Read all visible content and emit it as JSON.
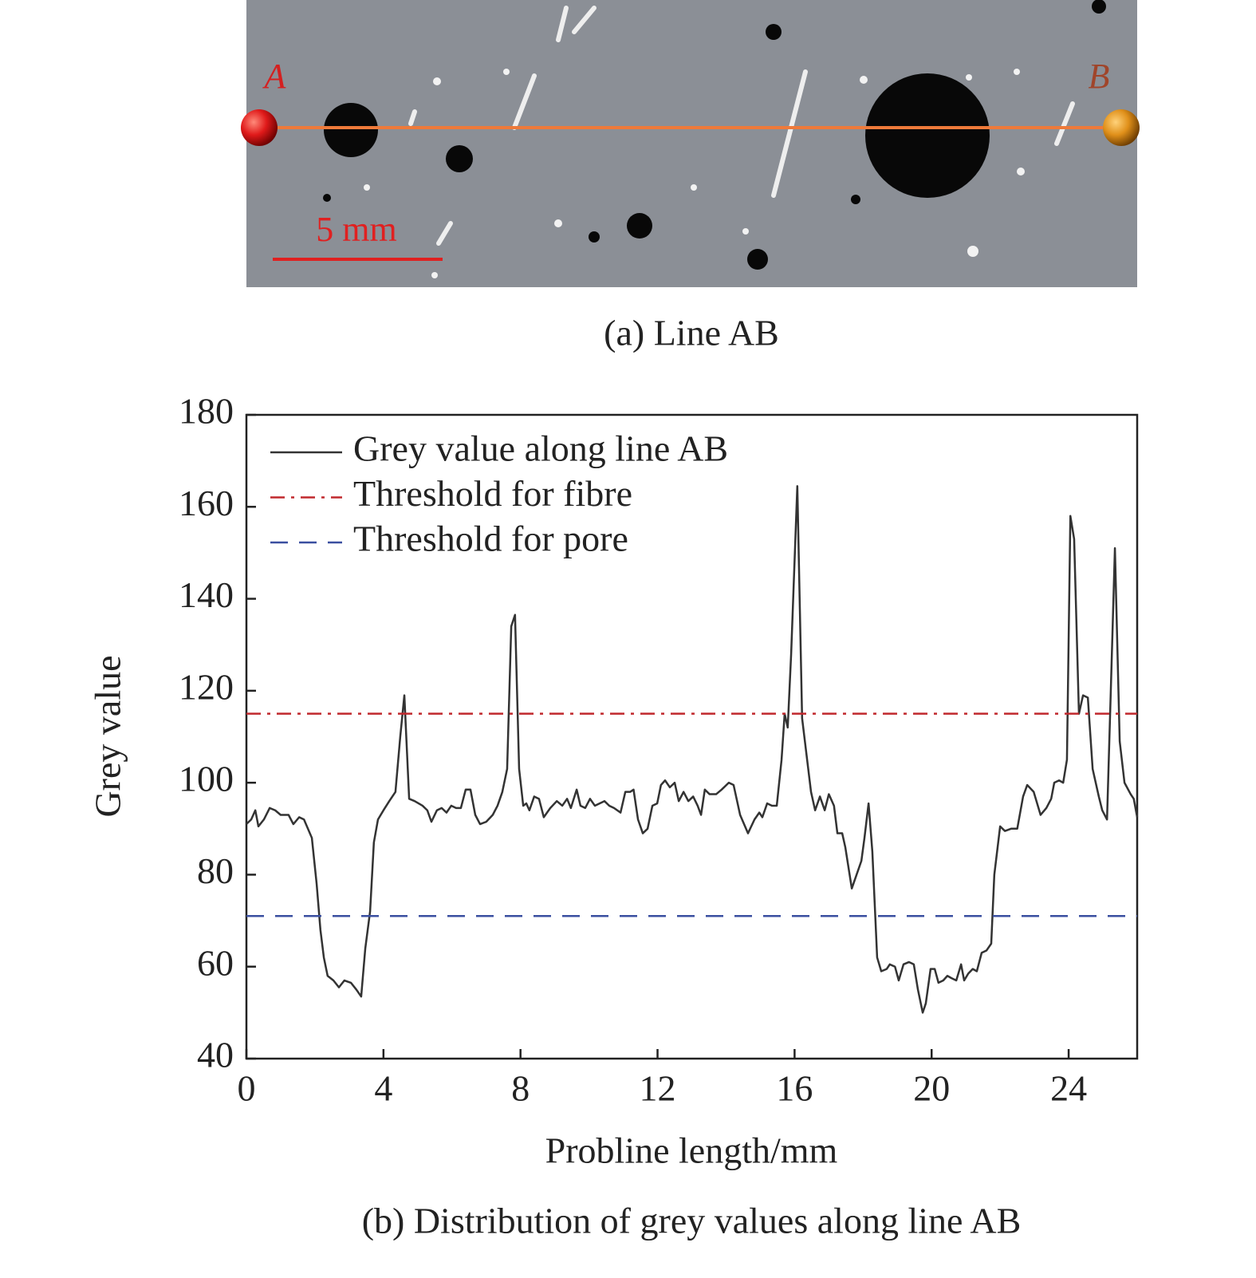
{
  "image_panel": {
    "point_a": "A",
    "point_b": "B",
    "scale_bar": "5 mm",
    "caption": "(a) Line AB"
  },
  "chart_data": {
    "type": "line",
    "x_label": "Probline length/mm",
    "y_label": "Grey value",
    "caption": "(b) Distribution of grey values along line AB",
    "xlim": [
      0,
      26
    ],
    "xticks": [
      0,
      4,
      8,
      12,
      16,
      20,
      24
    ],
    "ylim": [
      40,
      180
    ],
    "yticks": [
      40,
      60,
      80,
      100,
      120,
      140,
      160,
      180
    ],
    "legend": "upper left",
    "series": [
      {
        "name": "Grey value along line AB",
        "color": "#333333",
        "linestyle": "solid",
        "x": [
          0,
          0.14,
          0.26,
          0.35,
          0.51,
          0.68,
          0.84,
          1.0,
          1.23,
          1.37,
          1.54,
          1.68,
          1.91,
          2.05,
          2.16,
          2.26,
          2.37,
          2.54,
          2.7,
          2.86,
          3.05,
          3.21,
          3.35,
          3.47,
          3.61,
          3.72,
          3.84,
          4.0,
          4.17,
          4.35,
          4.49,
          4.61,
          4.75,
          4.91,
          5.14,
          5.28,
          5.4,
          5.56,
          5.7,
          5.84,
          5.98,
          6.12,
          6.26,
          6.4,
          6.54,
          6.68,
          6.82,
          7.0,
          7.19,
          7.33,
          7.47,
          7.61,
          7.73,
          7.84,
          7.96,
          8.08,
          8.17,
          8.26,
          8.4,
          8.54,
          8.68,
          8.87,
          9.06,
          9.22,
          9.36,
          9.47,
          9.64,
          9.75,
          9.89,
          10.03,
          10.17,
          10.31,
          10.45,
          10.59,
          10.73,
          10.92,
          11.06,
          11.2,
          11.3,
          11.43,
          11.57,
          11.71,
          11.85,
          11.99,
          12.1,
          12.22,
          12.36,
          12.5,
          12.62,
          12.76,
          12.9,
          13.04,
          13.17,
          13.27,
          13.38,
          13.52,
          13.71,
          13.87,
          14.08,
          14.22,
          14.41,
          14.64,
          14.83,
          14.97,
          15.06,
          15.2,
          15.34,
          15.48,
          15.62,
          15.71,
          15.8,
          15.9,
          16.08,
          16.22,
          16.48,
          16.6,
          16.74,
          16.88,
          17.0,
          17.15,
          17.25,
          17.39,
          17.48,
          17.67,
          17.95,
          18.04,
          18.16,
          18.27,
          18.41,
          18.53,
          18.69,
          18.78,
          18.93,
          19.04,
          19.18,
          19.34,
          19.48,
          19.6,
          19.74,
          19.83,
          19.97,
          20.09,
          20.2,
          20.34,
          20.46,
          20.58,
          20.72,
          20.86,
          20.95,
          21.07,
          21.2,
          21.32,
          21.46,
          21.6,
          21.74,
          21.83,
          22.0,
          22.14,
          22.32,
          22.5,
          22.67,
          22.79,
          22.98,
          23.18,
          23.35,
          23.49,
          23.58,
          23.72,
          23.84,
          23.95,
          24.05,
          24.16,
          24.3,
          24.42,
          24.56,
          24.7,
          24.88,
          24.98,
          25.12,
          25.23,
          25.35,
          25.49,
          25.63,
          25.81,
          25.9,
          26.0
        ],
        "values": [
          91,
          92,
          94,
          90.5,
          92,
          94.5,
          94,
          93,
          93,
          91,
          92.5,
          92,
          88,
          78,
          68,
          62,
          58,
          57,
          55.5,
          57,
          56.5,
          55,
          53.5,
          64,
          72,
          87,
          92,
          94,
          96,
          98,
          110,
          119,
          96.5,
          96,
          95,
          94,
          91.5,
          94,
          94.5,
          93.5,
          95,
          94.5,
          94.5,
          98.5,
          98.5,
          93,
          91,
          91.5,
          93,
          95,
          98,
          103,
          134,
          136.5,
          103,
          95,
          95.5,
          94,
          97,
          96.5,
          92.5,
          94.5,
          96,
          95,
          96.5,
          94.5,
          98.5,
          95,
          94.5,
          96.5,
          95,
          95.5,
          96,
          95,
          94.5,
          93.5,
          98,
          98,
          98.5,
          92,
          89,
          90,
          95,
          95.5,
          99.5,
          100.5,
          99,
          100,
          96,
          98,
          96,
          97,
          95,
          93,
          98.5,
          97.5,
          97.5,
          98.5,
          100,
          99.5,
          93,
          89,
          92,
          93.5,
          92.5,
          95.5,
          95,
          95,
          105,
          115,
          112,
          128,
          164.5,
          114,
          98,
          94,
          97,
          94,
          97.5,
          95,
          89,
          89,
          86,
          77,
          83,
          88,
          95.5,
          85,
          62,
          59,
          59.5,
          60.5,
          60,
          57,
          60.5,
          61,
          60.5,
          55,
          50,
          52,
          59.5,
          59.5,
          56.5,
          57,
          58,
          57.5,
          57,
          60.5,
          57,
          58.5,
          59.5,
          59,
          63,
          63.5,
          65,
          80,
          90.5,
          89.5,
          90,
          90,
          97,
          99.5,
          98,
          93,
          94.5,
          96.5,
          100,
          100.5,
          100,
          105,
          158,
          153,
          115,
          119,
          118.5,
          103,
          97,
          94,
          92,
          120,
          151,
          109,
          100,
          97.5,
          96.5,
          92.5
        ]
      },
      {
        "name": "Threshold for fibre",
        "color": "#c0282d",
        "linestyle": "dashdot",
        "x": [
          0,
          26
        ],
        "values": [
          115,
          115
        ]
      },
      {
        "name": "Threshold for pore",
        "color": "#3a4fa0",
        "linestyle": "dashed",
        "x": [
          0,
          26
        ],
        "values": [
          71,
          71
        ]
      }
    ]
  }
}
